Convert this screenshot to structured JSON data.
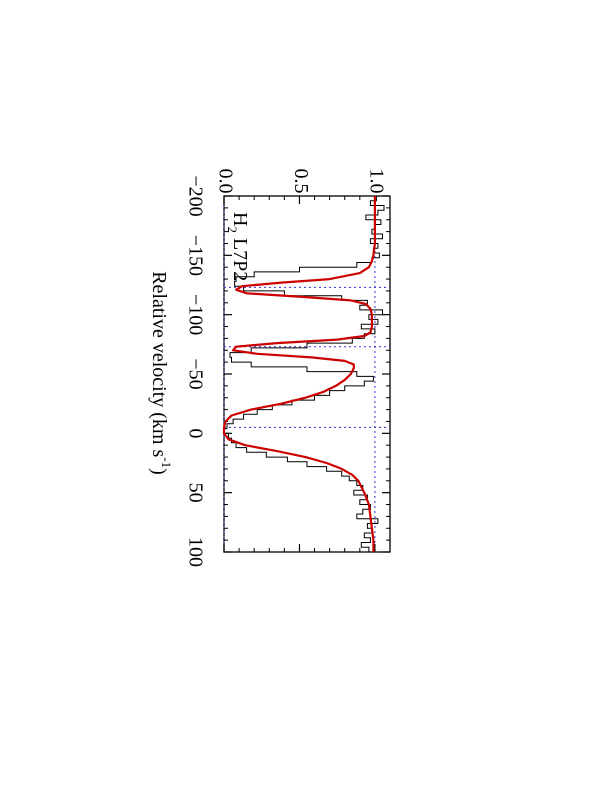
{
  "chart_data": {
    "type": "line",
    "orientation": "rotated 90 degrees clockwise",
    "xlabel": "Relative velocity (km s",
    "xlabel_sup": "-1",
    "xlabel_tail": ")",
    "xlim": [
      -200,
      100
    ],
    "ylim": [
      0.0,
      1.1
    ],
    "x_tick_labels": [
      "−200",
      "−150",
      "−100",
      "−50",
      "0",
      "50",
      "100"
    ],
    "x_ticks": [
      -200,
      -150,
      -100,
      -50,
      0,
      50,
      100
    ],
    "y_tick_labels": [
      "0.0",
      "0.5",
      "1.0"
    ],
    "y_ticks": [
      0.0,
      0.5,
      1.0
    ],
    "annotation": {
      "species": "H",
      "subscript": "2",
      "transition": " L7P2"
    },
    "reference_lines": {
      "zero_level": 0.0,
      "continuum_level": 1.0,
      "component_velocities": [
        -123,
        -73,
        -5
      ]
    },
    "colors": {
      "data": "#000000",
      "model": "#cc0000",
      "reference": "#3333cc"
    },
    "series": [
      {
        "kind": "data-histogram",
        "x": [
          -198,
          -194,
          -190,
          -186,
          -182,
          -178,
          -174,
          -170,
          -166,
          -162,
          -158,
          -154,
          -150,
          -146,
          -142,
          -138,
          -134,
          -130,
          -126,
          -122,
          -118,
          -114,
          -110,
          -106,
          -102,
          -98,
          -94,
          -90,
          -86,
          -82,
          -78,
          -74,
          -70,
          -66,
          -62,
          -58,
          -54,
          -50,
          -46,
          -42,
          -38,
          -34,
          -30,
          -26,
          -22,
          -18,
          -14,
          -10,
          -6,
          -2,
          2,
          6,
          10,
          14,
          18,
          22,
          26,
          30,
          34,
          38,
          42,
          46,
          50,
          54,
          58,
          62,
          66,
          70,
          74,
          78,
          82,
          86,
          90,
          94,
          98
        ],
        "y": [
          1.01,
          0.97,
          1.06,
          1.02,
          0.94,
          1.04,
          1.0,
          0.98,
          1.05,
          0.97,
          1.02,
          0.99,
          1.03,
          0.98,
          0.88,
          0.5,
          0.2,
          0.08,
          0.07,
          0.13,
          0.4,
          0.78,
          0.95,
          0.9,
          1.05,
          0.96,
          1.02,
          0.91,
          1.0,
          0.93,
          0.85,
          0.55,
          0.18,
          0.04,
          0.05,
          0.18,
          0.55,
          0.88,
          0.99,
          0.93,
          0.8,
          0.7,
          0.6,
          0.45,
          0.32,
          0.22,
          0.13,
          0.06,
          0.02,
          0.0,
          0.03,
          0.05,
          0.08,
          0.15,
          0.28,
          0.42,
          0.55,
          0.68,
          0.78,
          0.83,
          0.88,
          0.92,
          0.86,
          0.95,
          0.9,
          0.97,
          0.92,
          0.88,
          1.02,
          0.95,
          0.98,
          0.93,
          0.97,
          0.91,
          0.96
        ]
      },
      {
        "kind": "model-fit",
        "x": [
          -200,
          -180,
          -160,
          -150,
          -145,
          -140,
          -135,
          -130,
          -127,
          -124,
          -121,
          -118,
          -115,
          -112,
          -109,
          -105,
          -100,
          -95,
          -90,
          -85,
          -82,
          -79,
          -76,
          -73,
          -70,
          -67,
          -64,
          -61,
          -58,
          -55,
          -50,
          -45,
          -40,
          -35,
          -30,
          -25,
          -20,
          -15,
          -10,
          -5,
          0,
          5,
          10,
          15,
          20,
          25,
          30,
          35,
          40,
          50,
          60,
          70,
          80,
          90,
          100
        ],
        "y": [
          1.0,
          1.0,
          1.0,
          0.99,
          0.98,
          0.96,
          0.9,
          0.7,
          0.38,
          0.12,
          0.08,
          0.15,
          0.52,
          0.84,
          0.94,
          0.97,
          0.98,
          0.98,
          0.98,
          0.97,
          0.93,
          0.75,
          0.35,
          0.08,
          0.06,
          0.22,
          0.58,
          0.8,
          0.86,
          0.86,
          0.84,
          0.8,
          0.74,
          0.66,
          0.54,
          0.38,
          0.18,
          0.05,
          0.01,
          0.0,
          0.0,
          0.03,
          0.14,
          0.35,
          0.54,
          0.68,
          0.78,
          0.85,
          0.89,
          0.93,
          0.96,
          0.97,
          0.98,
          0.99,
          0.99
        ]
      }
    ]
  }
}
